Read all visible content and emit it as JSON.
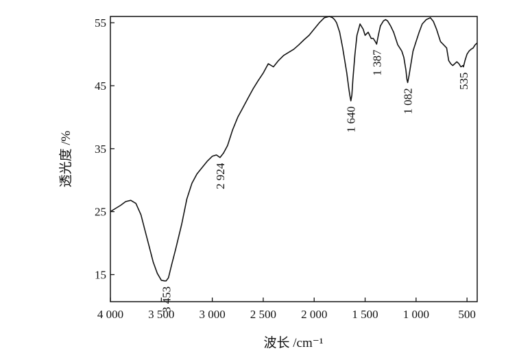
{
  "chart_data": {
    "type": "line",
    "title": "",
    "xlabel": "波长 /cm⁻¹",
    "ylabel": "透光度 /%",
    "xlim": [
      4000,
      400
    ],
    "ylim": [
      10.7,
      56
    ],
    "x_reversed": true,
    "grid": false,
    "legend": "none",
    "line_color": "#111111",
    "x_ticks": [
      {
        "value": 4000,
        "label": "4 000"
      },
      {
        "value": 3500,
        "label": "3 500"
      },
      {
        "value": 3000,
        "label": "3 000"
      },
      {
        "value": 2500,
        "label": "2 500"
      },
      {
        "value": 2000,
        "label": "2 000"
      },
      {
        "value": 1500,
        "label": "1 500"
      },
      {
        "value": 1000,
        "label": "1 000"
      },
      {
        "value": 500,
        "label": "500"
      }
    ],
    "y_ticks": [
      {
        "value": 15,
        "label": "15"
      },
      {
        "value": 25,
        "label": "25"
      },
      {
        "value": 35,
        "label": "35"
      },
      {
        "value": 45,
        "label": "45"
      },
      {
        "value": 55,
        "label": "55"
      }
    ],
    "peak_labels": [
      {
        "x": 3453,
        "y": 14.0,
        "label": "3 453"
      },
      {
        "x": 2924,
        "y": 33.6,
        "label": "2 924"
      },
      {
        "x": 1640,
        "y": 42.6,
        "label": "1 640"
      },
      {
        "x": 1387,
        "y": 51.6,
        "label": "1 387"
      },
      {
        "x": 1082,
        "y": 45.5,
        "label": "1 082"
      },
      {
        "x": 535,
        "y": 48.0,
        "label": "535"
      }
    ],
    "series": [
      {
        "x": [
          4000,
          3960,
          3900,
          3850,
          3800,
          3750,
          3700,
          3660,
          3620,
          3580,
          3540,
          3500,
          3470,
          3453,
          3430,
          3400,
          3360,
          3300,
          3250,
          3200,
          3150,
          3100,
          3050,
          3000,
          2960,
          2924,
          2890,
          2850,
          2800,
          2750,
          2700,
          2650,
          2600,
          2550,
          2500,
          2450,
          2400,
          2350,
          2300,
          2250,
          2200,
          2150,
          2100,
          2050,
          2000,
          1950,
          1900,
          1850,
          1820,
          1800,
          1780,
          1750,
          1720,
          1700,
          1680,
          1660,
          1650,
          1640,
          1630,
          1620,
          1600,
          1580,
          1550,
          1520,
          1500,
          1470,
          1440,
          1420,
          1400,
          1387,
          1370,
          1350,
          1320,
          1300,
          1280,
          1250,
          1220,
          1200,
          1180,
          1160,
          1140,
          1120,
          1100,
          1090,
          1082,
          1070,
          1050,
          1030,
          1000,
          970,
          940,
          900,
          860,
          830,
          800,
          780,
          760,
          730,
          700,
          680,
          660,
          640,
          620,
          600,
          580,
          560,
          540,
          535,
          520,
          500,
          480,
          460,
          440,
          420,
          400
        ],
        "y": [
          25.0,
          25.4,
          26.0,
          26.6,
          26.8,
          26.3,
          24.5,
          22.0,
          19.5,
          17.0,
          15.2,
          14.1,
          14.0,
          14.0,
          14.5,
          16.5,
          19.0,
          23.0,
          27.0,
          29.5,
          31.0,
          32.0,
          33.0,
          33.8,
          34.0,
          33.6,
          34.3,
          35.5,
          38.0,
          40.0,
          41.5,
          43.0,
          44.5,
          45.8,
          47.0,
          48.5,
          48.0,
          49.0,
          49.8,
          50.3,
          50.8,
          51.5,
          52.3,
          53.0,
          54.0,
          55.0,
          55.8,
          56.0,
          55.8,
          55.5,
          55.0,
          53.5,
          51.0,
          49.0,
          47.0,
          44.5,
          43.5,
          42.6,
          43.5,
          46.0,
          50.0,
          53.0,
          54.8,
          54.0,
          53.0,
          53.5,
          52.5,
          52.5,
          52.0,
          51.6,
          53.0,
          54.5,
          55.3,
          55.5,
          55.3,
          54.5,
          53.5,
          52.5,
          51.5,
          51.0,
          50.5,
          49.5,
          47.5,
          46.0,
          45.5,
          46.5,
          48.5,
          50.5,
          52.0,
          53.5,
          54.8,
          55.5,
          55.8,
          55.2,
          54.0,
          53.0,
          52.0,
          51.5,
          51.0,
          49.0,
          48.5,
          48.2,
          48.5,
          48.8,
          48.5,
          48.0,
          48.2,
          48.0,
          49.0,
          50.0,
          50.5,
          50.8,
          51.0,
          51.5,
          51.8
        ]
      }
    ]
  }
}
